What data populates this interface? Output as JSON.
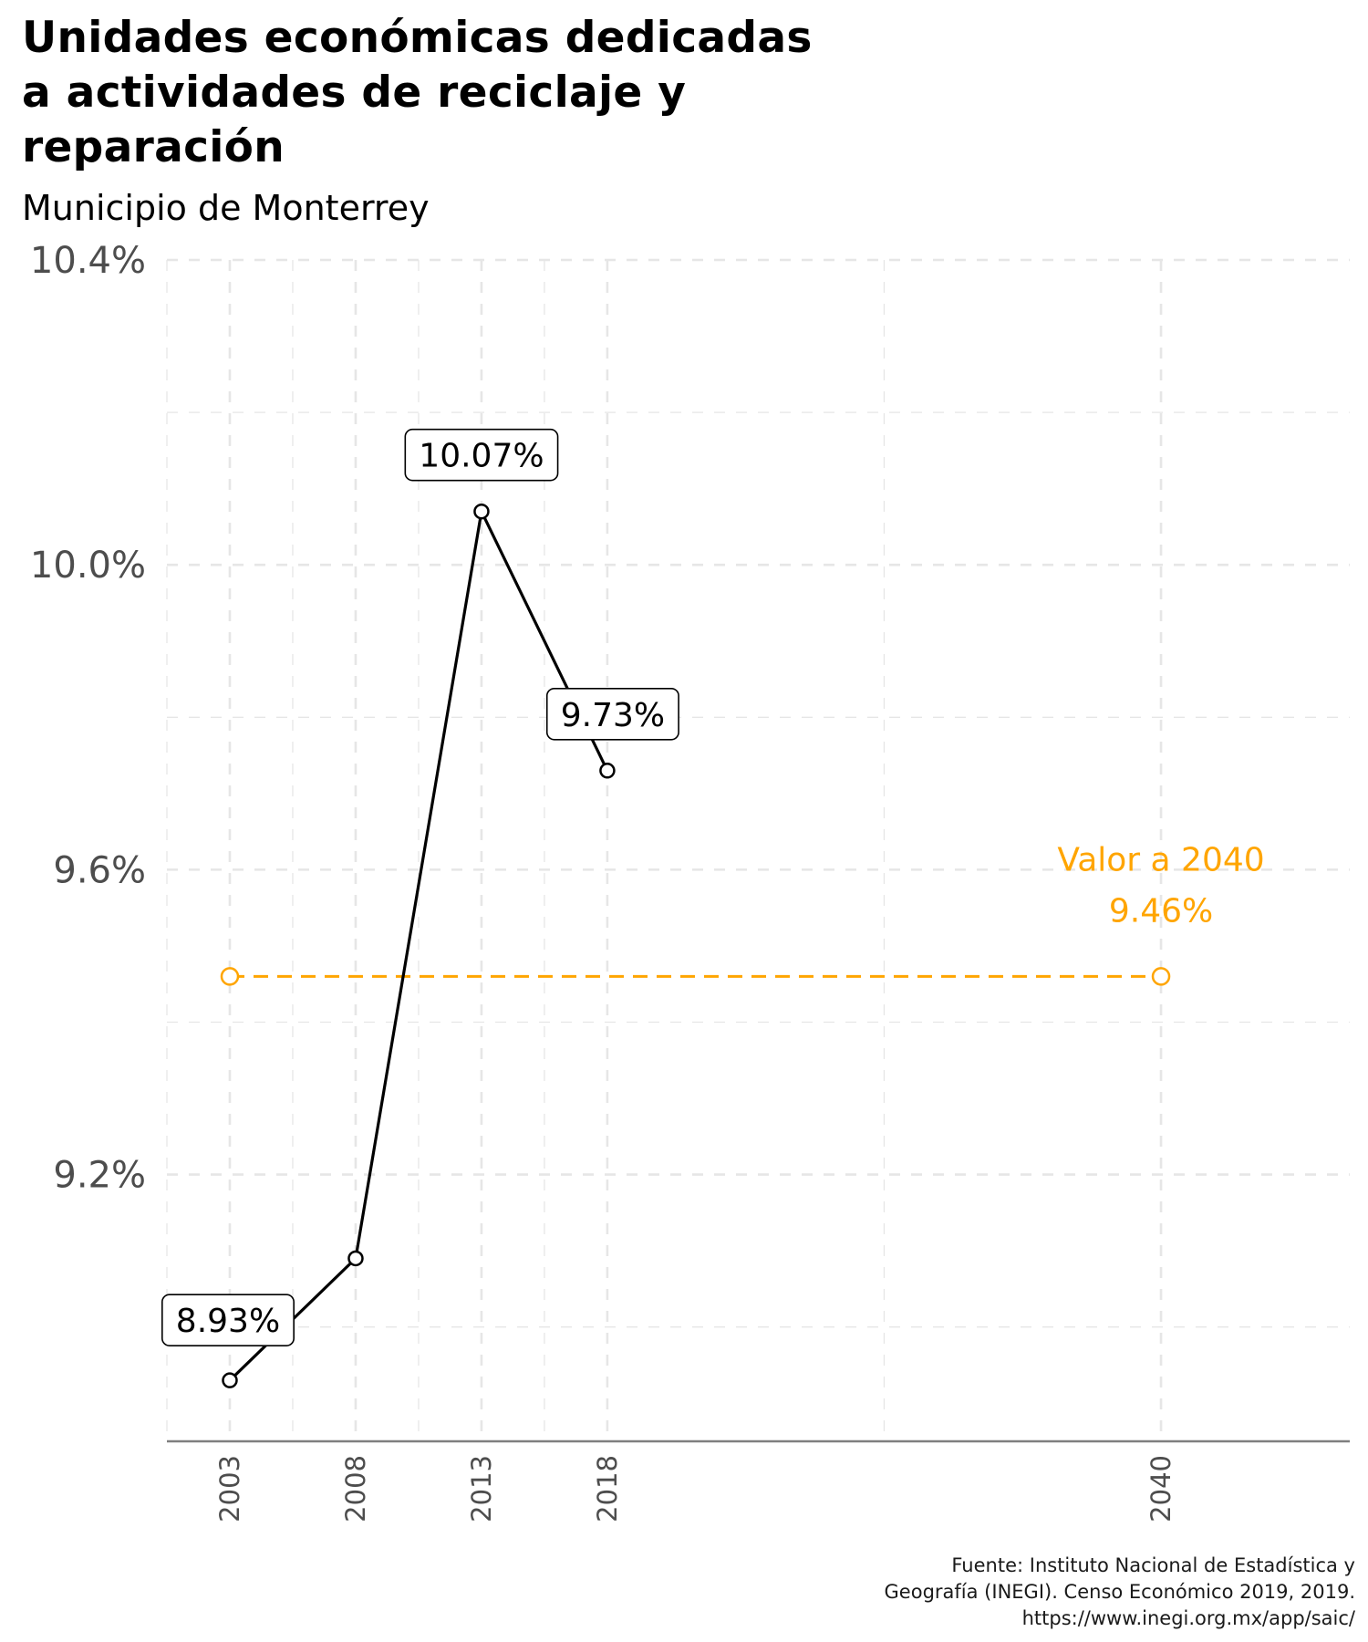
{
  "title": "Unidades económicas dedicadas a actividades de reciclaje y reparación",
  "subtitle": "Municipio de Monterrey",
  "source_lines": [
    "Fuente: Instituto Nacional de Estadística y",
    "Geografía (INEGI). Censo Económico 2019, 2019.",
    "https://www.inegi.org.mx/app/saic/"
  ],
  "colors": {
    "series": "#000000",
    "target": "#FFA500",
    "grid": "#E6E6E6",
    "axis_text": "#4D4D4D",
    "baseline": "#7F7F7F"
  },
  "chart_data": {
    "type": "line",
    "title": "Unidades económicas dedicadas a actividades de reciclaje y reparación",
    "subtitle": "Municipio de Monterrey",
    "xlabel": "",
    "ylabel": "",
    "x_ticks": [
      "2003",
      "2008",
      "2013",
      "2018",
      "2040"
    ],
    "y_ticks": [
      "9.2%",
      "9.6%",
      "10.0%",
      "10.4%"
    ],
    "xlim": [
      2000.5,
      2047.5
    ],
    "ylim": [
      8.85,
      10.4
    ],
    "grid": true,
    "series": [
      {
        "x": [
          2003,
          2008,
          2013,
          2018
        ],
        "y": [
          8.93,
          9.09,
          10.07,
          9.73
        ],
        "labels": [
          "8.93%",
          "",
          "10.07%",
          "9.73%"
        ]
      }
    ],
    "target": {
      "label": "Valor a 2040",
      "value_label": "9.46%",
      "value": 9.46,
      "x_start": 2003,
      "x_end": 2040
    }
  }
}
